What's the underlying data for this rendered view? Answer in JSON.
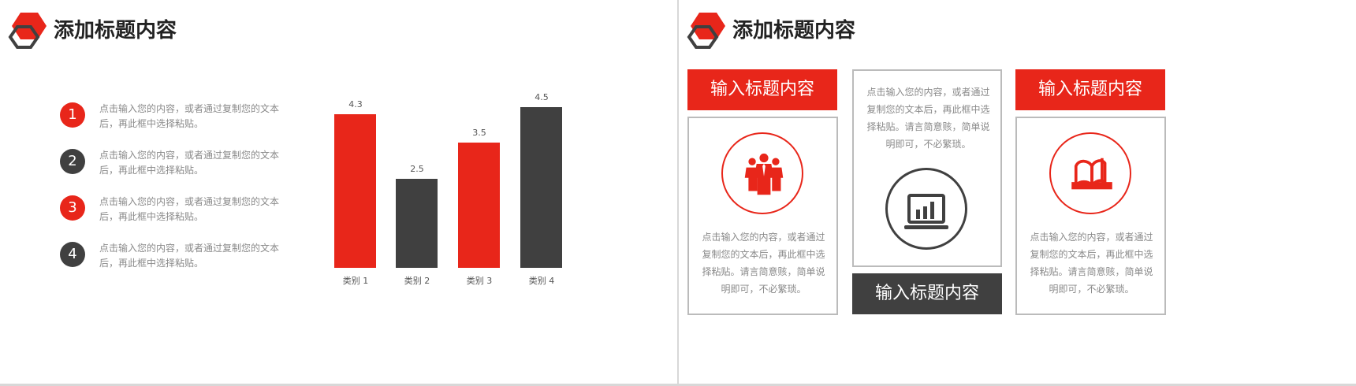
{
  "colors": {
    "accent": "#e8261a",
    "dark": "#404040"
  },
  "slide1": {
    "title": "添加标题内容",
    "items": [
      {
        "num": "1",
        "text": "点击输入您的内容，或者通过复制您的文本后，再此框中选择粘贴。",
        "color": "#e8261a"
      },
      {
        "num": "2",
        "text": "点击输入您的内容，或者通过复制您的文本后，再此框中选择粘贴。",
        "color": "#404040"
      },
      {
        "num": "3",
        "text": "点击输入您的内容，或者通过复制您的文本后，再此框中选择粘贴。",
        "color": "#e8261a"
      },
      {
        "num": "4",
        "text": "点击输入您的内容，或者通过复制您的文本后，再此框中选择粘贴。",
        "color": "#404040"
      }
    ]
  },
  "chart_data": {
    "type": "bar",
    "categories": [
      "类别 1",
      "类别 2",
      "类别 3",
      "类别 4"
    ],
    "values": [
      4.3,
      2.5,
      3.5,
      4.5
    ],
    "data_labels": [
      "4.3",
      "2.5",
      "3.5",
      "4.5"
    ],
    "bar_colors": [
      "#e8261a",
      "#404040",
      "#e8261a",
      "#404040"
    ],
    "ylim": [
      0,
      5
    ],
    "grid": false
  },
  "slide2": {
    "title": "添加标题内容",
    "cards": [
      {
        "heading": "输入标题内容",
        "text": "点击输入您的内容，或者通过复制您的文本后，再此框中选择粘贴。请言简意赅，简单说明即可，不必繁琐。",
        "icon": "people-icon"
      },
      {
        "heading": "输入标题内容",
        "text": "点击输入您的内容，或者通过复制您的文本后，再此框中选择粘贴。请言简意赅，简单说明即可，不必繁琐。",
        "icon": "laptop-chart-icon"
      },
      {
        "heading": "输入标题内容",
        "text": "点击输入您的内容，或者通过复制您的文本后，再此框中选择粘贴。请言简意赅，简单说明即可，不必繁琐。",
        "icon": "book-icon"
      }
    ]
  }
}
